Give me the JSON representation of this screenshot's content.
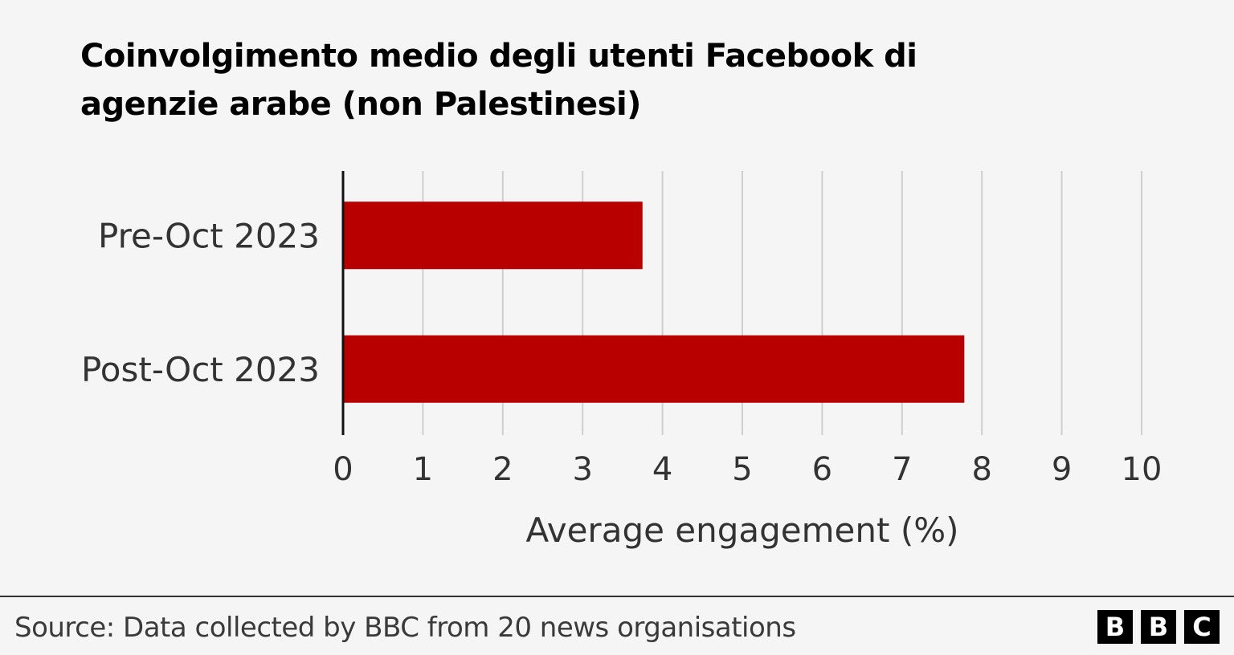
{
  "title": "Coinvolgimento medio degli utenti Facebook di agenzie arabe (non Palestinesi)",
  "chart_data": {
    "type": "bar",
    "orientation": "horizontal",
    "title": "Coinvolgimento medio degli utenti Facebook di agenzie arabe (non Palestinesi)",
    "categories": [
      "Pre-Oct 2023",
      "Post-Oct 2023"
    ],
    "values": [
      3.75,
      7.78
    ],
    "xlabel": "Average engagement (%)",
    "ylabel": "",
    "xlim": [
      0,
      10
    ],
    "xticks": [
      "0",
      "1",
      "2",
      "3",
      "4",
      "5",
      "6",
      "7",
      "8",
      "9",
      "10"
    ],
    "grid": "vertical",
    "legend": "none",
    "bar_color": "#b80000"
  },
  "footer": {
    "source": "Source: Data collected by BBC from 20 news organisations",
    "logo_letters": [
      "B",
      "B",
      "C"
    ]
  }
}
